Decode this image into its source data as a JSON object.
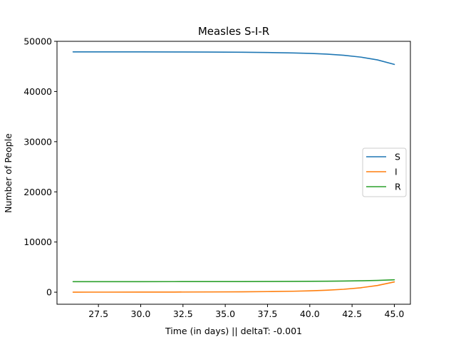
{
  "chart_data": {
    "type": "line",
    "title": "Measles S-I-R",
    "xlabel": "Time (in days) || deltaT: -0.001",
    "ylabel": "Number of People",
    "xlim": [
      25.05,
      45.95
    ],
    "ylim": [
      -2400,
      50000
    ],
    "xticks": [
      27.5,
      30.0,
      32.5,
      35.0,
      37.5,
      40.0,
      42.5,
      45.0
    ],
    "xtick_labels": [
      "27.5",
      "30.0",
      "32.5",
      "35.0",
      "37.5",
      "40.0",
      "42.5",
      "45.0"
    ],
    "yticks": [
      0,
      10000,
      20000,
      30000,
      40000,
      50000
    ],
    "ytick_labels": [
      "0",
      "10000",
      "20000",
      "30000",
      "40000",
      "50000"
    ],
    "grid": false,
    "legend_position": "center-right",
    "x": [
      26.0,
      28.0,
      30.0,
      32.0,
      34.0,
      36.0,
      37.5,
      39.0,
      40.0,
      41.0,
      42.0,
      43.0,
      44.0,
      45.0
    ],
    "series": [
      {
        "name": "S",
        "color": "#1f77b4",
        "values": [
          47900,
          47900,
          47890,
          47880,
          47860,
          47820,
          47770,
          47690,
          47600,
          47450,
          47220,
          46860,
          46300,
          45400
        ]
      },
      {
        "name": "I",
        "color": "#ff7f0e",
        "values": [
          10,
          15,
          20,
          30,
          50,
          80,
          120,
          190,
          270,
          390,
          580,
          880,
          1340,
          2050
        ]
      },
      {
        "name": "R",
        "color": "#2ca02c",
        "values": [
          2100,
          2100,
          2105,
          2110,
          2115,
          2125,
          2135,
          2150,
          2170,
          2190,
          2220,
          2270,
          2350,
          2480
        ]
      }
    ]
  }
}
